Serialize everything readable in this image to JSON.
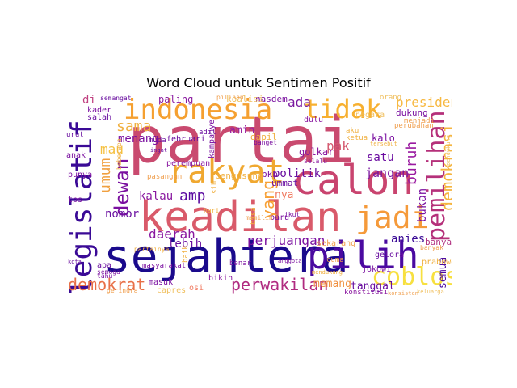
{
  "title": "Word Cloud untuk Sentimen Positif",
  "words": [
    {
      "text": "partai",
      "color": "#c94a6f"
    },
    {
      "text": "sejahtera",
      "color": "#1a0a8c"
    },
    {
      "text": "keadilan",
      "color": "#d95a6a"
    },
    {
      "text": "calon",
      "color": "#c9446f"
    },
    {
      "text": "rakyat",
      "color": "#f0a830"
    },
    {
      "text": "pilih",
      "color": "#4a0aa0"
    },
    {
      "text": "indonesia",
      "color": "#f5a030"
    },
    {
      "text": "tidak",
      "color": "#f7b030"
    },
    {
      "text": "legislatif",
      "color": "#3a0a96"
    },
    {
      "text": "jadi",
      "color": "#f59a3a"
    },
    {
      "text": "coblos",
      "color": "#f7e040"
    },
    {
      "text": "pemilihan",
      "color": "#b5307a"
    },
    {
      "text": "dewan",
      "color": "#7a10a0"
    },
    {
      "text": "demokrasi",
      "color": "#f5b540"
    },
    {
      "text": "yang",
      "color": "#f7a035"
    },
    {
      "text": "demokrat",
      "color": "#e87048"
    },
    {
      "text": "perwakilan",
      "color": "#b02a80"
    },
    {
      "text": "buruh",
      "color": "#9a1aa0"
    },
    {
      "text": "umum",
      "color": "#f0a040"
    },
    {
      "text": "sama",
      "color": "#f0b040"
    },
    {
      "text": "amp",
      "color": "#5a0aa0"
    },
    {
      "text": "presiden",
      "color": "#f7b840"
    },
    {
      "text": "ada",
      "color": "#7a18a0"
    },
    {
      "text": "pak",
      "color": "#d45a70"
    },
    {
      "text": "daerah",
      "color": "#8a18a0"
    },
    {
      "text": "perjuangan",
      "color": "#7a10a0"
    },
    {
      "text": "politik",
      "color": "#6a10a0"
    },
    {
      "text": "jangan",
      "color": "#7a14a0"
    },
    {
      "text": "satu",
      "color": "#6a0aa0"
    },
    {
      "text": "mau",
      "color": "#f5c040"
    },
    {
      "text": "menang",
      "color": "#7a10a0"
    },
    {
      "text": "kalau",
      "color": "#8a1aa0"
    },
    {
      "text": "nomor",
      "color": "#6a10a0"
    },
    {
      "text": "lebih",
      "color": "#6a10a0"
    },
    {
      "text": "anies",
      "color": "#3a0a96"
    },
    {
      "text": "memang",
      "color": "#f09040"
    },
    {
      "text": "tanggal",
      "color": "#6a10a0"
    },
    {
      "text": "bukan",
      "color": "#7a10a0"
    },
    {
      "text": "semua",
      "color": "#4a0aa0"
    },
    {
      "text": "banyak",
      "color": "#b03080"
    },
    {
      "text": "di",
      "color": "#c04080"
    },
    {
      "text": "paling",
      "color": "#8a1aa0"
    },
    {
      "text": "nasdem",
      "color": "#7a10a0"
    },
    {
      "text": "dukung",
      "color": "#7a10a0"
    },
    {
      "text": "amin",
      "color": "#9a20a0"
    },
    {
      "text": "golkar",
      "color": "#8a18a0"
    },
    {
      "text": "kalo",
      "color": "#7a10a0"
    },
    {
      "text": "pkb",
      "color": "#7a10a0"
    },
    {
      "text": "nya",
      "color": "#f07a60"
    },
    {
      "text": "ummat",
      "color": "#6a10a0"
    },
    {
      "text": "dapil",
      "color": "#f0b040"
    },
    {
      "text": "pengusung",
      "color": "#f0b040"
    },
    {
      "text": "perempuan",
      "color": "#8a18a0"
    },
    {
      "text": "kampanye",
      "color": "#7a10a0"
    },
    {
      "text": "februari",
      "color": "#6a10a0"
    },
    {
      "text": "koalisi",
      "color": "#f0c060"
    },
    {
      "text": "kader",
      "color": "#7a10a0"
    },
    {
      "text": "salah",
      "color": "#6a10a0"
    },
    {
      "text": "anak",
      "color": "#7a10a0"
    },
    {
      "text": "punya",
      "color": "#7a10a0"
    },
    {
      "text": "tps",
      "color": "#7a10a0"
    },
    {
      "text": "apa",
      "color": "#6a10a0"
    },
    {
      "text": "kota",
      "color": "#6a10a0"
    },
    {
      "text": "masuk",
      "color": "#7a10a0"
    },
    {
      "text": "capres",
      "color": "#f0c060"
    },
    {
      "text": "osi",
      "color": "#f07a60"
    },
    {
      "text": "bikin",
      "color": "#8a18a0"
    },
    {
      "text": "benar",
      "color": "#7a10a0"
    },
    {
      "text": "sekarang",
      "color": "#f0a050"
    },
    {
      "text": "gelora",
      "color": "#6a10a0"
    },
    {
      "text": "jokowi",
      "color": "#7a10a0"
    },
    {
      "text": "konstitusi",
      "color": "#8a18a0"
    },
    {
      "text": "prabowo",
      "color": "#f0b040"
    },
    {
      "text": "konsisten",
      "color": "#f0a050"
    },
    {
      "text": "muda",
      "color": "#6a10a0"
    },
    {
      "text": "adil",
      "color": "#6a10a0"
    },
    {
      "text": "baru",
      "color": "#7a10a0"
    },
    {
      "text": "memilih",
      "color": "#f0a050"
    },
    {
      "text": "perubahan",
      "color": "#f0a050"
    },
    {
      "text": "menjadi",
      "color": "#f0a050"
    },
    {
      "text": "pendukung",
      "color": "#f0c060"
    },
    {
      "text": "aku",
      "color": "#f0b040"
    },
    {
      "text": "ketua",
      "color": "#f0b040"
    },
    {
      "text": "selalu",
      "color": "#8a18a0"
    },
    {
      "text": "cuma",
      "color": "#f0a050"
    },
    {
      "text": "pilihan",
      "color": "#f0a050"
    },
    {
      "text": "semangat",
      "color": "#6a10a0"
    },
    {
      "text": "negara",
      "color": "#f0c060"
    },
    {
      "text": "dulu",
      "color": "#8a18a0"
    },
    {
      "text": "ikut",
      "color": "#7a10a0"
    },
    {
      "text": "hari",
      "color": "#f0b040"
    },
    {
      "text": "pasangan",
      "color": "#f0a050"
    },
    {
      "text": "semoga",
      "color": "#7a10a0"
    },
    {
      "text": "orang",
      "color": "#f0c060"
    },
    {
      "text": "tahu",
      "color": "#7a10a0"
    },
    {
      "text": "gerindra",
      "color": "#f0a050"
    },
    {
      "text": "partainya",
      "color": "#f0b040"
    },
    {
      "text": "masyarakat",
      "color": "#7a10a0"
    },
    {
      "text": "anggota",
      "color": "#7a10a0"
    },
    {
      "text": "mendukung",
      "color": "#f0b040"
    },
    {
      "text": "keluarga",
      "color": "#f0c060"
    },
    {
      "text": "tersebut",
      "color": "#f0b040"
    },
    {
      "text": "beberapa",
      "color": "#f0b040"
    },
    {
      "text": "bisa",
      "color": "#f0b040"
    },
    {
      "text": "sih",
      "color": "#f0b040"
    },
    {
      "text": "baik",
      "color": "#f0b040"
    },
    {
      "text": "urut",
      "color": "#6a10a0"
    },
    {
      "text": "ingat",
      "color": "#6a10a0"
    },
    {
      "text": "banget",
      "color": "#7a10a0"
    },
    {
      "text": "banyak",
      "color": "#f0a050"
    }
  ]
}
